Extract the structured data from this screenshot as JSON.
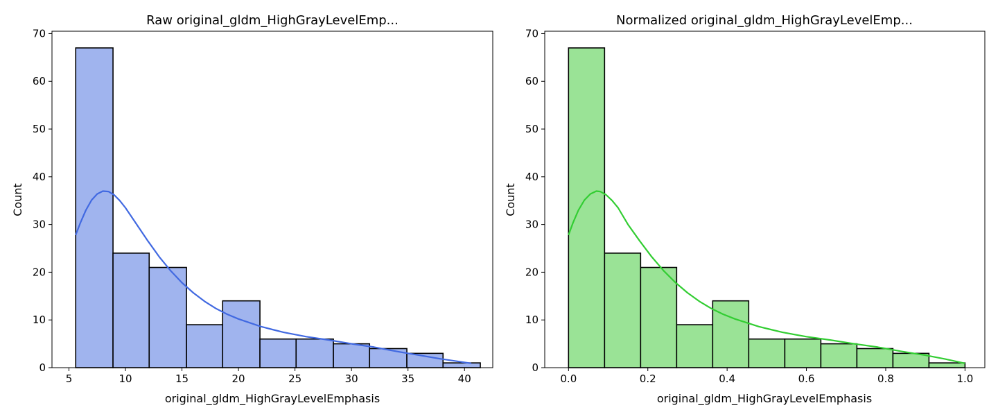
{
  "chart_data": [
    {
      "type": "histogram",
      "title": "Raw original_gldm_HighGrayLevelEmp...",
      "xlabel": "original_gldm_HighGrayLevelEmphasis",
      "ylabel": "Count",
      "bin_edges": [
        5.6,
        8.9,
        12.1,
        15.4,
        18.6,
        21.9,
        25.1,
        28.4,
        31.6,
        34.9,
        38.1,
        41.4
      ],
      "counts": [
        67,
        24,
        21,
        9,
        14,
        6,
        6,
        5,
        4,
        3,
        1
      ],
      "kde": {
        "x": [
          5.6,
          6.0,
          6.5,
          7.0,
          7.5,
          8.0,
          8.5,
          9.0,
          9.5,
          10.0,
          11.0,
          12.0,
          13.0,
          14.0,
          15.0,
          16.0,
          17.0,
          18.0,
          19.0,
          20.0,
          21.0,
          22.0,
          23.0,
          24.0,
          26.0,
          28.0,
          30.0,
          32.0,
          34.0,
          36.0,
          38.0,
          40.6
        ],
        "y": [
          27.8,
          30.3,
          33.0,
          35.1,
          36.4,
          37.0,
          36.9,
          36.2,
          35.0,
          33.5,
          30.0,
          26.5,
          23.2,
          20.3,
          17.8,
          15.7,
          13.9,
          12.4,
          11.2,
          10.2,
          9.4,
          8.6,
          8.0,
          7.4,
          6.5,
          5.8,
          5.0,
          4.3,
          3.4,
          2.6,
          1.8,
          0.9
        ]
      },
      "xlim": [
        3.5,
        42.5
      ],
      "ylim": [
        0,
        70.5
      ],
      "xticks": [
        5,
        10,
        15,
        20,
        25,
        30,
        35,
        40
      ],
      "yticks": [
        0,
        10,
        20,
        30,
        40,
        50,
        60,
        70
      ],
      "bar_color": "#a0b4ee",
      "line_color": "#4169e1",
      "grid": false,
      "legend": "none"
    },
    {
      "type": "histogram",
      "title": "Normalized original_gldm_HighGrayLevelEmp...",
      "xlabel": "original_gldm_HighGrayLevelEmphasis",
      "ylabel": "Count",
      "bin_edges": [
        0.0,
        0.0909,
        0.1818,
        0.2727,
        0.3636,
        0.4545,
        0.5455,
        0.6364,
        0.7273,
        0.8182,
        0.9091,
        1.0
      ],
      "counts": [
        67,
        24,
        21,
        9,
        14,
        6,
        6,
        5,
        4,
        3,
        1
      ],
      "kde": {
        "x": [
          0.0,
          0.011,
          0.025,
          0.04,
          0.055,
          0.07,
          0.08,
          0.095,
          0.11,
          0.125,
          0.15,
          0.18,
          0.21,
          0.24,
          0.27,
          0.3,
          0.33,
          0.36,
          0.39,
          0.42,
          0.45,
          0.48,
          0.51,
          0.54,
          0.6,
          0.66,
          0.72,
          0.78,
          0.84,
          0.9,
          0.95,
          1.0
        ],
        "y": [
          27.8,
          30.3,
          33.0,
          35.1,
          36.4,
          37.0,
          36.9,
          36.2,
          35.0,
          33.5,
          30.0,
          26.5,
          23.2,
          20.3,
          17.8,
          15.7,
          13.9,
          12.4,
          11.2,
          10.2,
          9.4,
          8.6,
          8.0,
          7.4,
          6.5,
          5.8,
          5.0,
          4.3,
          3.4,
          2.6,
          1.8,
          0.9
        ]
      },
      "xlim": [
        -0.06,
        1.05
      ],
      "ylim": [
        0,
        70.5
      ],
      "xticks": [
        0.0,
        0.2,
        0.4,
        0.6,
        0.8,
        1.0
      ],
      "xtick_labels": [
        "0.0",
        "0.2",
        "0.4",
        "0.6",
        "0.8",
        "1.0"
      ],
      "yticks": [
        0,
        10,
        20,
        30,
        40,
        50,
        60,
        70
      ],
      "bar_color": "#9ae396",
      "line_color": "#32cd32",
      "grid": false,
      "legend": "none"
    }
  ]
}
